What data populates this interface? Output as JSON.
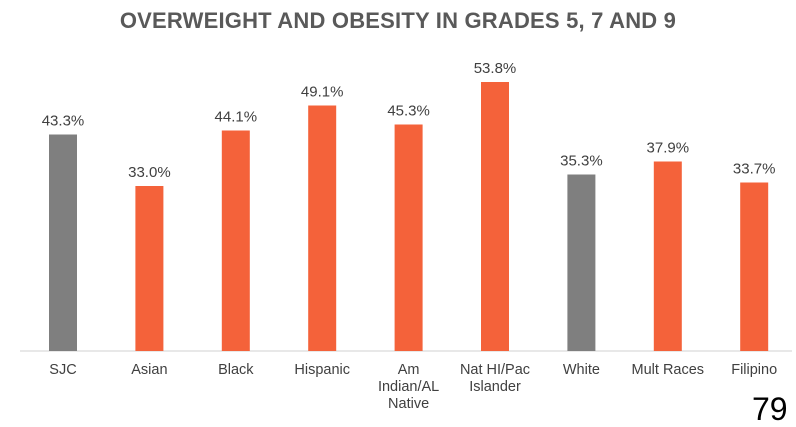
{
  "chart_data": {
    "type": "bar",
    "title": "OVERWEIGHT AND OBESITY IN GRADES 5, 7 AND 9",
    "categories": [
      [
        "SJC"
      ],
      [
        "Asian"
      ],
      [
        "Black"
      ],
      [
        "Hispanic"
      ],
      [
        "Am",
        "Indian/AL",
        "Native"
      ],
      [
        "Nat HI/Pac",
        "Islander"
      ],
      [
        "White"
      ],
      [
        "Mult Races"
      ],
      [
        "Filipino"
      ]
    ],
    "values": [
      43.3,
      33.0,
      44.1,
      49.1,
      45.3,
      53.8,
      35.3,
      37.9,
      33.7
    ],
    "value_labels": [
      "43.3%",
      "33.0%",
      "44.1%",
      "49.1%",
      "45.3%",
      "53.8%",
      "35.3%",
      "37.9%",
      "33.7%"
    ],
    "bar_colors": [
      "#7f7f7f",
      "#f4623a",
      "#f4623a",
      "#f4623a",
      "#f4623a",
      "#f4623a",
      "#7f7f7f",
      "#f4623a",
      "#f4623a"
    ],
    "ylim": [
      0,
      60
    ],
    "grid": false,
    "legend": "none",
    "xlabel": "",
    "ylabel": ""
  },
  "page_number": "79"
}
